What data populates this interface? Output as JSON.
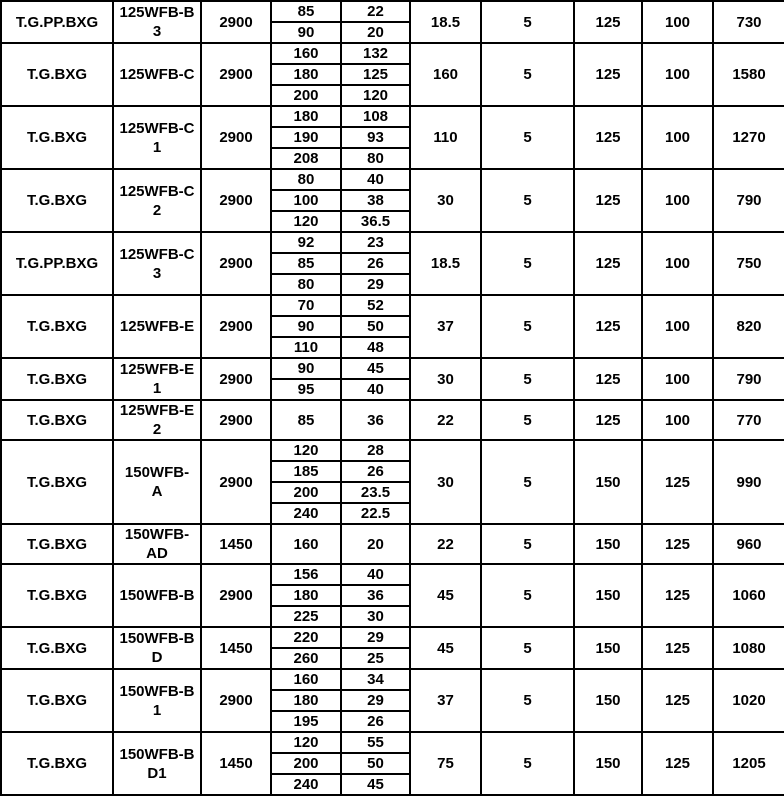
{
  "chart_data": {
    "type": "table",
    "grid_color": "#000000",
    "text_color": "#000000",
    "background_color": "#ffffff",
    "header_visible": false,
    "groups": [
      {
        "brand": "T.G.PP.BXG",
        "model": "125WFB-B\n3",
        "speed": "2900",
        "points": [
          [
            "85",
            "22"
          ],
          [
            "90",
            "20"
          ]
        ],
        "power": "18.5",
        "v5": "5",
        "dn1": "125",
        "dn2": "100",
        "weight": "730"
      },
      {
        "brand": "T.G.BXG",
        "model": "125WFB-C",
        "speed": "2900",
        "points": [
          [
            "160",
            "132"
          ],
          [
            "180",
            "125"
          ],
          [
            "200",
            "120"
          ]
        ],
        "power": "160",
        "v5": "5",
        "dn1": "125",
        "dn2": "100",
        "weight": "1580"
      },
      {
        "brand": "T.G.BXG",
        "model": "125WFB-C\n1",
        "speed": "2900",
        "points": [
          [
            "180",
            "108"
          ],
          [
            "190",
            "93"
          ],
          [
            "208",
            "80"
          ]
        ],
        "power": "110",
        "v5": "5",
        "dn1": "125",
        "dn2": "100",
        "weight": "1270"
      },
      {
        "brand": "T.G.BXG",
        "model": "125WFB-C\n2",
        "speed": "2900",
        "points": [
          [
            "80",
            "40"
          ],
          [
            "100",
            "38"
          ],
          [
            "120",
            "36.5"
          ]
        ],
        "power": "30",
        "v5": "5",
        "dn1": "125",
        "dn2": "100",
        "weight": "790"
      },
      {
        "brand": "T.G.PP.BXG",
        "model": "125WFB-C\n3",
        "speed": "2900",
        "points": [
          [
            "92",
            "23"
          ],
          [
            "85",
            "26"
          ],
          [
            "80",
            "29"
          ]
        ],
        "power": "18.5",
        "v5": "5",
        "dn1": "125",
        "dn2": "100",
        "weight": "750"
      },
      {
        "brand": "T.G.BXG",
        "model": "125WFB-E",
        "speed": "2900",
        "points": [
          [
            "70",
            "52"
          ],
          [
            "90",
            "50"
          ],
          [
            "110",
            "48"
          ]
        ],
        "power": "37",
        "v5": "5",
        "dn1": "125",
        "dn2": "100",
        "weight": "820"
      },
      {
        "brand": "T.G.BXG",
        "model": "125WFB-E\n1",
        "speed": "2900",
        "points": [
          [
            "90",
            "45"
          ],
          [
            "95",
            "40"
          ]
        ],
        "power": "30",
        "v5": "5",
        "dn1": "125",
        "dn2": "100",
        "weight": "790"
      },
      {
        "brand": "T.G.BXG",
        "model": "125WFB-E\n2",
        "speed": "2900",
        "points": [
          [
            "85",
            "36"
          ]
        ],
        "power": "22",
        "v5": "5",
        "dn1": "125",
        "dn2": "100",
        "weight": "770"
      },
      {
        "brand": "T.G.BXG",
        "model": "150WFB-\nA",
        "speed": "2900",
        "points": [
          [
            "120",
            "28"
          ],
          [
            "185",
            "26"
          ],
          [
            "200",
            "23.5"
          ],
          [
            "240",
            "22.5"
          ]
        ],
        "power": "30",
        "v5": "5",
        "dn1": "150",
        "dn2": "125",
        "weight": "990"
      },
      {
        "brand": "T.G.BXG",
        "model": "150WFB-\nAD",
        "speed": "1450",
        "points": [
          [
            "160",
            "20"
          ]
        ],
        "power": "22",
        "v5": "5",
        "dn1": "150",
        "dn2": "125",
        "weight": "960"
      },
      {
        "brand": "T.G.BXG",
        "model": "150WFB-B",
        "speed": "2900",
        "points": [
          [
            "156",
            "40"
          ],
          [
            "180",
            "36"
          ],
          [
            "225",
            "30"
          ]
        ],
        "power": "45",
        "v5": "5",
        "dn1": "150",
        "dn2": "125",
        "weight": "1060"
      },
      {
        "brand": "T.G.BXG",
        "model": "150WFB-B\nD",
        "speed": "1450",
        "points": [
          [
            "220",
            "29"
          ],
          [
            "260",
            "25"
          ]
        ],
        "power": "45",
        "v5": "5",
        "dn1": "150",
        "dn2": "125",
        "weight": "1080"
      },
      {
        "brand": "T.G.BXG",
        "model": "150WFB-B\n1",
        "speed": "2900",
        "points": [
          [
            "160",
            "34"
          ],
          [
            "180",
            "29"
          ],
          [
            "195",
            "26"
          ]
        ],
        "power": "37",
        "v5": "5",
        "dn1": "150",
        "dn2": "125",
        "weight": "1020"
      },
      {
        "brand": "T.G.BXG",
        "model": "150WFB-B\nD1",
        "speed": "1450",
        "points": [
          [
            "120",
            "55"
          ],
          [
            "200",
            "50"
          ],
          [
            "240",
            "45"
          ]
        ],
        "power": "75",
        "v5": "5",
        "dn1": "150",
        "dn2": "125",
        "weight": "1205"
      }
    ]
  }
}
